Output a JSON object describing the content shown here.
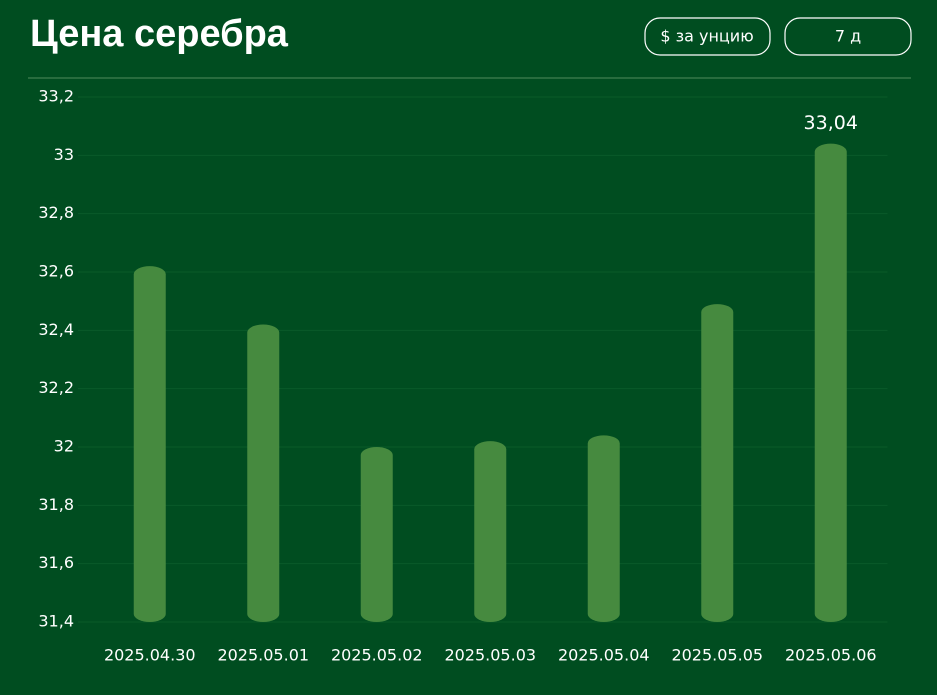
{
  "header": {
    "title": "Цена серебра",
    "unit_button": "$ за унцию",
    "period_button": "7 д"
  },
  "chart_data": {
    "type": "bar",
    "categories": [
      "2025.04.30",
      "2025.05.01",
      "2025.05.02",
      "2025.05.03",
      "2025.05.04",
      "2025.05.05",
      "2025.05.06"
    ],
    "values": [
      32.62,
      32.42,
      32.0,
      32.02,
      32.04,
      32.49,
      33.04
    ],
    "value_labels": [
      null,
      null,
      null,
      null,
      null,
      null,
      "33,04"
    ],
    "color": "#468a3f",
    "ylim": [
      31.4,
      33.2
    ],
    "yticks": [
      {
        "value": 31.4,
        "label": "31,4"
      },
      {
        "value": 31.6,
        "label": "31,6"
      },
      {
        "value": 31.8,
        "label": "31,8"
      },
      32,
      {
        "value": 32.2,
        "label": "32,2"
      },
      {
        "value": 32.4,
        "label": "32,4"
      },
      {
        "value": 32.6,
        "label": "32,6"
      },
      {
        "value": 32.8,
        "label": "32,8"
      },
      33,
      {
        "value": 33.2,
        "label": "33,2"
      }
    ],
    "grid": true
  }
}
